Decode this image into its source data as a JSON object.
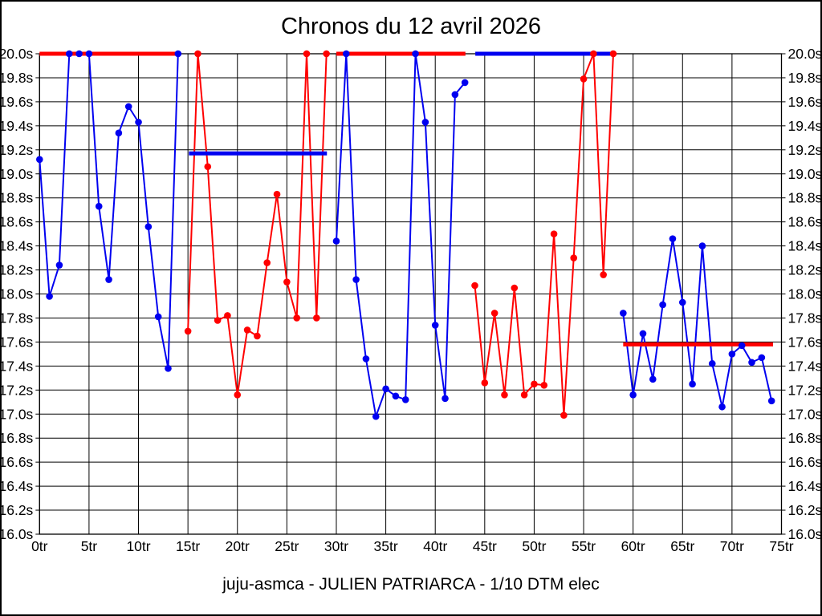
{
  "colors": {
    "red": "#ff0000",
    "blue": "#0000f0",
    "grid": "#000000",
    "background": "#ffffff",
    "text": "#000000"
  },
  "chart_data": {
    "type": "line",
    "title": "Chronos du 12 avril 2026",
    "caption": "juju-asmca - JULIEN PATRIARCA - 1/10 DTM elec",
    "xlabel": "",
    "ylabel": "",
    "x_unit": "tr",
    "y_unit": "s",
    "xlim": [
      0,
      75
    ],
    "ylim": [
      16.0,
      20.0
    ],
    "grid": true,
    "x_ticks": [
      0,
      5,
      10,
      15,
      20,
      25,
      30,
      35,
      40,
      45,
      50,
      55,
      60,
      65,
      70,
      75
    ],
    "x_tick_labels": [
      "0tr",
      "5tr",
      "10tr",
      "15tr",
      "20tr",
      "25tr",
      "30tr",
      "35tr",
      "40tr",
      "45tr",
      "50tr",
      "55tr",
      "60tr",
      "65tr",
      "70tr",
      "75tr"
    ],
    "y_ticks": [
      20.0,
      19.8,
      19.6,
      19.4,
      19.2,
      19.0,
      18.8,
      18.6,
      18.4,
      18.2,
      18.0,
      17.8,
      17.6,
      17.4,
      17.2,
      17.0,
      16.8,
      16.6,
      16.4,
      16.2,
      16.0
    ],
    "y_tick_labels": [
      "20.0s",
      "19.8s",
      "19.6s",
      "19.4s",
      "19.2s",
      "19.0s",
      "18.8s",
      "18.6s",
      "18.4s",
      "18.2s",
      "18.0s",
      "17.8s",
      "17.6s",
      "17.4s",
      "17.2s",
      "17.0s",
      "16.8s",
      "16.6s",
      "16.4s",
      "16.2s",
      "16.0s"
    ],
    "series": [
      {
        "name": "blue-stint-1",
        "color": "blue",
        "start_lap": 0,
        "values": [
          19.12,
          17.98,
          18.24,
          20.0,
          20.0,
          20.0,
          18.73,
          18.12,
          19.34,
          19.56,
          19.43,
          18.56,
          17.81,
          17.38,
          20.0
        ]
      },
      {
        "name": "red-stint-1",
        "color": "red",
        "start_lap": 15,
        "values": [
          17.69,
          20.0,
          19.06,
          17.78,
          17.82,
          17.16,
          17.7,
          17.65,
          18.26,
          18.83,
          18.1,
          17.8,
          20.0,
          17.8,
          20.0
        ]
      },
      {
        "name": "blue-stint-2",
        "color": "blue",
        "start_lap": 30,
        "values": [
          18.44,
          20.0,
          18.12,
          17.46,
          16.98,
          17.21,
          17.15,
          17.12,
          20.0,
          19.43,
          17.74,
          17.13,
          19.66,
          19.76
        ]
      },
      {
        "name": "red-stint-2",
        "color": "red",
        "start_lap": 44,
        "values": [
          18.07,
          17.26,
          17.84,
          17.16,
          18.05,
          17.16,
          17.25,
          17.24,
          18.5,
          16.99,
          18.3,
          19.79,
          20.0,
          18.16,
          20.0
        ]
      },
      {
        "name": "blue-stint-3",
        "color": "blue",
        "start_lap": 59,
        "values": [
          17.84,
          17.16,
          17.67,
          17.29,
          17.91,
          18.46,
          17.93,
          17.25,
          18.4,
          17.42,
          17.06,
          17.5,
          17.57,
          17.43,
          17.47,
          17.11
        ]
      }
    ],
    "reference_lines": [
      {
        "name": "ref-line-stint-1",
        "color": "red",
        "value": 20.0,
        "from_lap": 0.0,
        "to_lap": 13.9
      },
      {
        "name": "ref-line-stint-2",
        "color": "blue",
        "value": 19.17,
        "from_lap": 15.1,
        "to_lap": 29.05
      },
      {
        "name": "ref-line-stint-3",
        "color": "red",
        "value": 20.0,
        "from_lap": 30.0,
        "to_lap": 43.05
      },
      {
        "name": "ref-line-stint-4",
        "color": "blue",
        "value": 20.0,
        "from_lap": 44.05,
        "to_lap": 58.1
      },
      {
        "name": "ref-line-stint-5",
        "color": "red",
        "value": 17.58,
        "from_lap": 59.0,
        "to_lap": 74.15
      }
    ]
  }
}
